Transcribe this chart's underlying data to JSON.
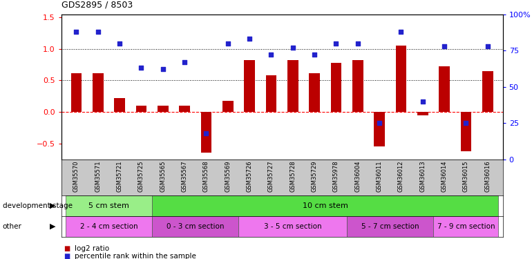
{
  "title": "GDS2895 / 8503",
  "samples": [
    "GSM35570",
    "GSM35571",
    "GSM35721",
    "GSM35725",
    "GSM35565",
    "GSM35567",
    "GSM35568",
    "GSM35569",
    "GSM35726",
    "GSM35727",
    "GSM35728",
    "GSM35729",
    "GSM35978",
    "GSM36004",
    "GSM36011",
    "GSM36012",
    "GSM36013",
    "GSM36014",
    "GSM36015",
    "GSM36016"
  ],
  "log2_ratio": [
    0.62,
    0.62,
    0.22,
    0.1,
    0.1,
    0.1,
    -0.65,
    0.18,
    0.82,
    0.58,
    0.82,
    0.62,
    0.78,
    0.82,
    -0.55,
    1.05,
    -0.05,
    0.72,
    -0.62,
    0.65
  ],
  "percentile": [
    88,
    88,
    80,
    63,
    62,
    67,
    18,
    80,
    83,
    72,
    77,
    72,
    80,
    80,
    25,
    88,
    40,
    78,
    25,
    78
  ],
  "ylim_left": [
    -0.75,
    1.55
  ],
  "ylim_right": [
    0,
    100
  ],
  "left_ticks": [
    -0.5,
    0.0,
    0.5,
    1.0,
    1.5
  ],
  "right_ticks": [
    0,
    25,
    50,
    75,
    100
  ],
  "right_tick_labels": [
    "0",
    "25",
    "50",
    "75",
    "100%"
  ],
  "hlines": [
    0.5,
    1.0
  ],
  "bar_color": "#bb0000",
  "dot_color": "#2222cc",
  "bg_color": "#ffffff",
  "tick_area_color": "#c8c8c8",
  "dev_stage_label": "development stage",
  "other_label": "other",
  "dev_stage_groups": [
    {
      "label": "5 cm stem",
      "start": 0,
      "end": 4,
      "color": "#99ee88"
    },
    {
      "label": "10 cm stem",
      "start": 4,
      "end": 20,
      "color": "#55dd44"
    }
  ],
  "other_groups": [
    {
      "label": "2 - 4 cm section",
      "start": 0,
      "end": 4,
      "color": "#ee77ee"
    },
    {
      "label": "0 - 3 cm section",
      "start": 4,
      "end": 8,
      "color": "#cc55cc"
    },
    {
      "label": "3 - 5 cm section",
      "start": 8,
      "end": 13,
      "color": "#ee77ee"
    },
    {
      "label": "5 - 7 cm section",
      "start": 13,
      "end": 17,
      "color": "#cc55cc"
    },
    {
      "label": "7 - 9 cm section",
      "start": 17,
      "end": 20,
      "color": "#ee77ee"
    }
  ],
  "legend_items": [
    {
      "label": "log2 ratio",
      "color": "#bb0000"
    },
    {
      "label": "percentile rank within the sample",
      "color": "#2222cc"
    }
  ]
}
